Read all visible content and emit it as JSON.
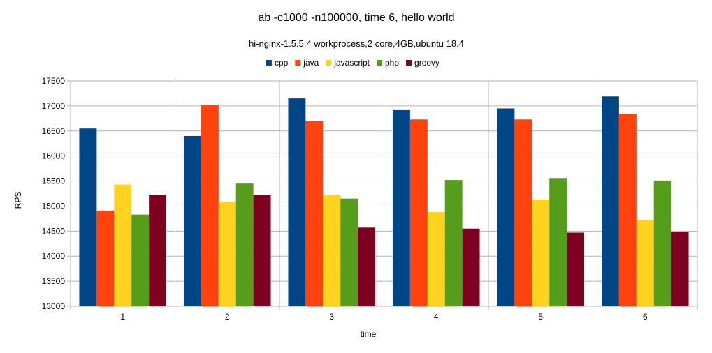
{
  "chart_data": {
    "type": "bar",
    "title": "ab -c1000 -n100000, time 6, hello world",
    "subtitle": "hi-nginx-1.5.5,4 workprocess,2 core,4GB,ubuntu 18.4",
    "xlabel": "time",
    "ylabel": "RPS",
    "ylim": [
      13000,
      17500
    ],
    "yticks": [
      13000,
      13500,
      14000,
      14500,
      15000,
      15500,
      16000,
      16500,
      17000,
      17500
    ],
    "categories": [
      "1",
      "2",
      "3",
      "4",
      "5",
      "6"
    ],
    "grid": true,
    "legend_position": "top",
    "series": [
      {
        "name": "cpp",
        "color": "#004586",
        "values": [
          16550,
          16400,
          17150,
          16930,
          16950,
          17190
        ]
      },
      {
        "name": "java",
        "color": "#ff420e",
        "values": [
          14910,
          17020,
          16700,
          16730,
          16730,
          16840
        ]
      },
      {
        "name": "javascript",
        "color": "#ffd320",
        "values": [
          15430,
          15090,
          15220,
          14880,
          15130,
          14720
        ]
      },
      {
        "name": "php",
        "color": "#579d1c",
        "values": [
          14830,
          15450,
          15150,
          15520,
          15560,
          15510
        ]
      },
      {
        "name": "groovy",
        "color": "#7e0021",
        "values": [
          15220,
          15220,
          14570,
          14550,
          14470,
          14490
        ]
      }
    ]
  }
}
